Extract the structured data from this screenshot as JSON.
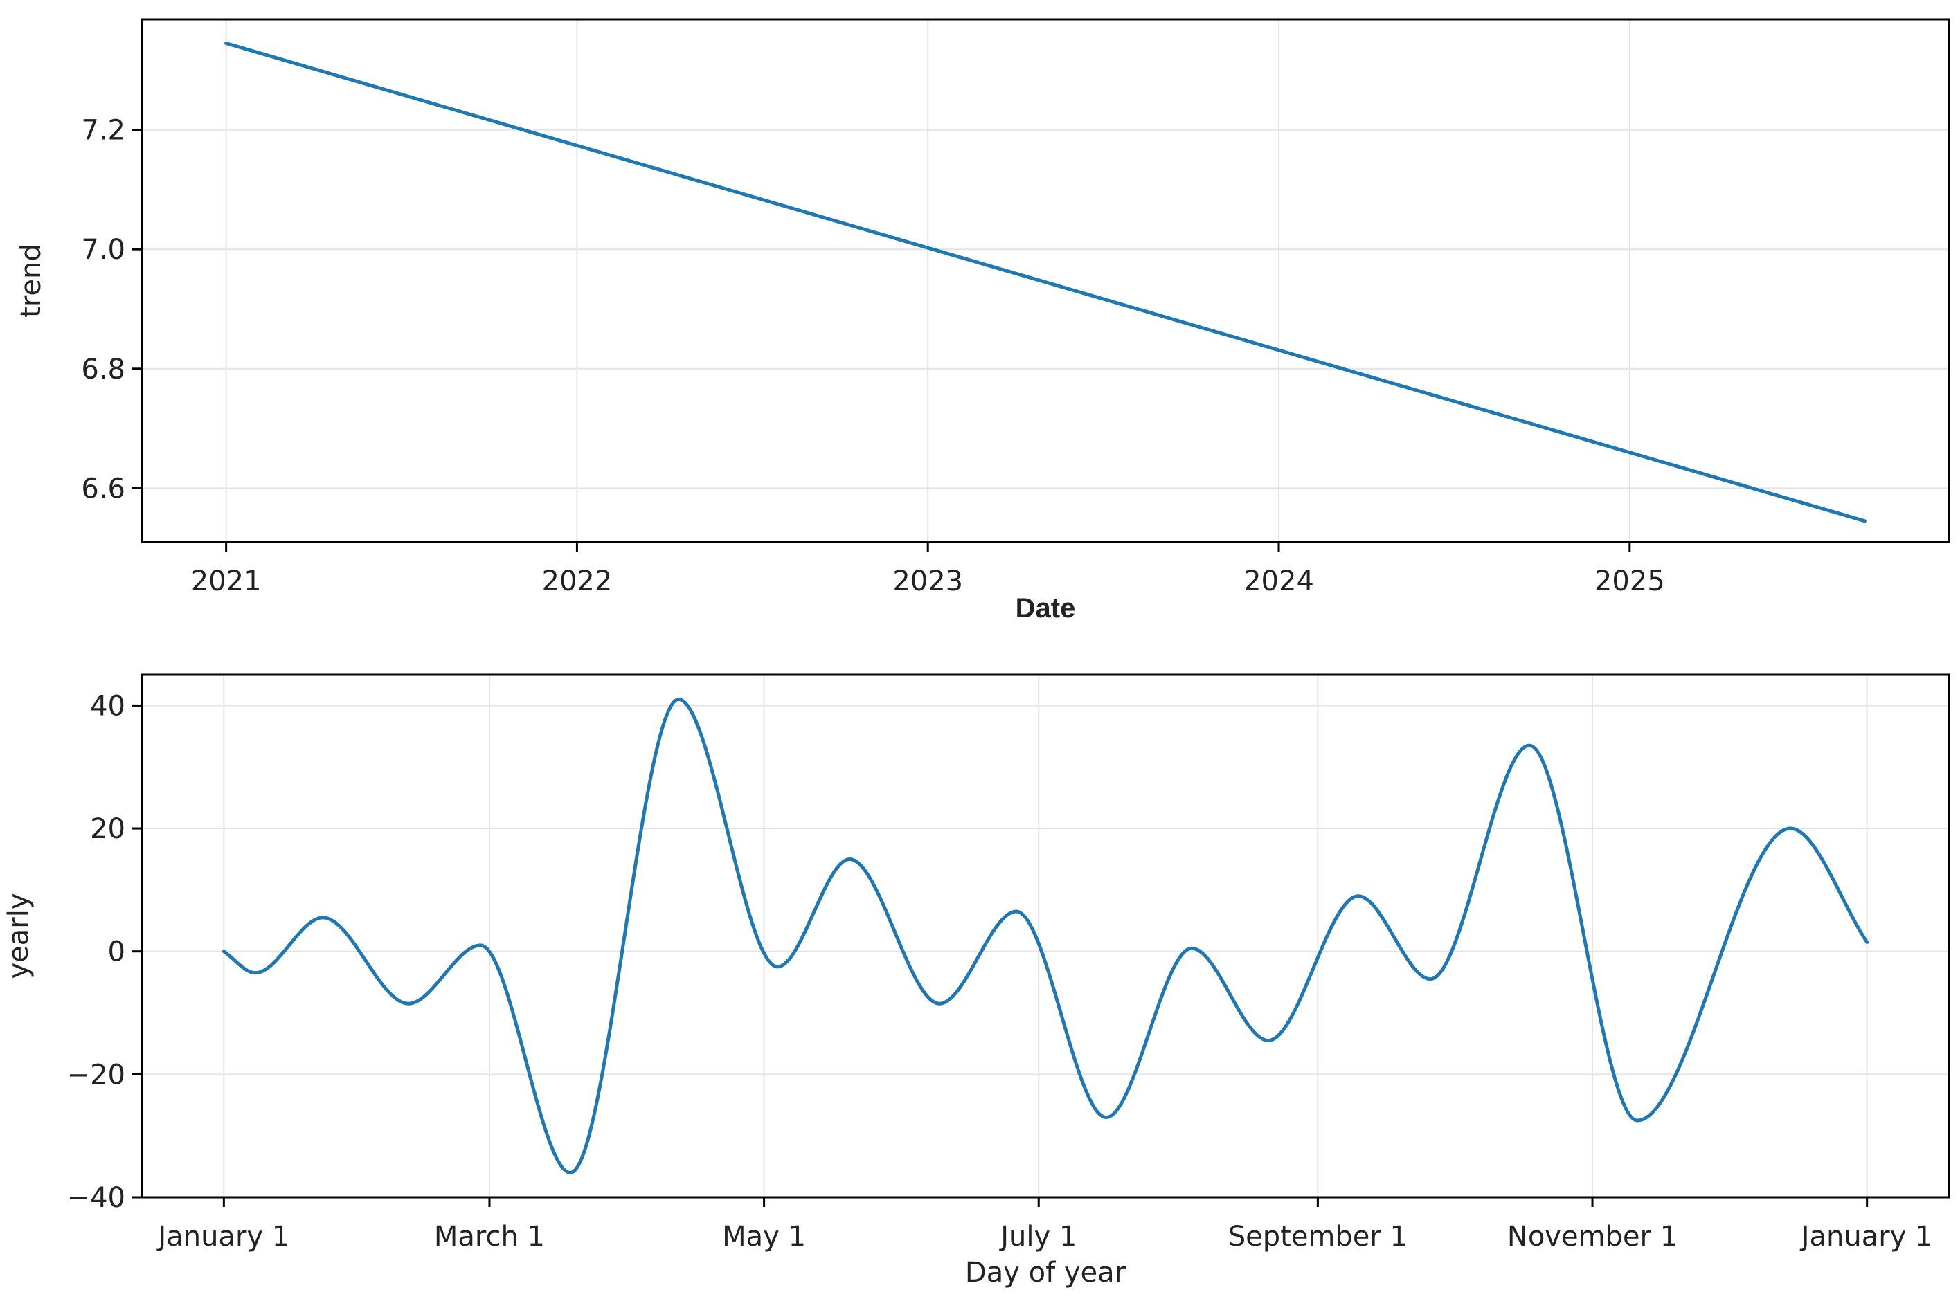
{
  "chart_data": [
    {
      "type": "line",
      "xlabel": "Date",
      "ylabel": "trend",
      "x_ticks": [
        2021,
        2022,
        2023,
        2024,
        2025
      ],
      "x_tick_labels": [
        "2021",
        "2022",
        "2023",
        "2024",
        "2025"
      ],
      "y_ticks": [
        6.6,
        6.8,
        7.0,
        7.2
      ],
      "y_tick_labels": [
        "6.6",
        "6.8",
        "7.0",
        "7.2"
      ],
      "xlim": [
        2020.76,
        2025.91
      ],
      "ylim": [
        6.51,
        7.385
      ],
      "grid": true,
      "color": "#1f77b4",
      "series": [
        {
          "x": [
            2021.0,
            2025.67
          ],
          "values": [
            7.345,
            6.545
          ]
        }
      ]
    },
    {
      "type": "line",
      "xlabel": "Day of year",
      "ylabel": "yearly",
      "x_ticks": [
        0,
        59,
        120,
        181,
        243,
        304,
        365
      ],
      "x_tick_labels": [
        "January 1",
        "March 1",
        "May 1",
        "July 1",
        "September 1",
        "November 1",
        "January 1"
      ],
      "y_ticks": [
        -40,
        -20,
        0,
        20,
        40
      ],
      "y_tick_labels": [
        "−40",
        "−20",
        "0",
        "20",
        "40"
      ],
      "xlim": [
        -18.2,
        383.2
      ],
      "ylim": [
        -40,
        45
      ],
      "grid": true,
      "color": "#1f77b4",
      "series": [
        {
          "x": [
            0,
            7,
            22,
            41,
            57,
            77,
            101,
            123,
            139,
            159,
            176,
            196,
            215,
            232,
            252,
            268,
            290,
            314,
            348,
            365
          ],
          "values": [
            0,
            -3.5,
            5.5,
            -8.5,
            1,
            -36,
            41,
            -2.5,
            15,
            -8.5,
            6.5,
            -27,
            0.5,
            -14.5,
            9,
            -4.5,
            33.5,
            -27.5,
            20,
            1.5
          ]
        }
      ]
    }
  ]
}
